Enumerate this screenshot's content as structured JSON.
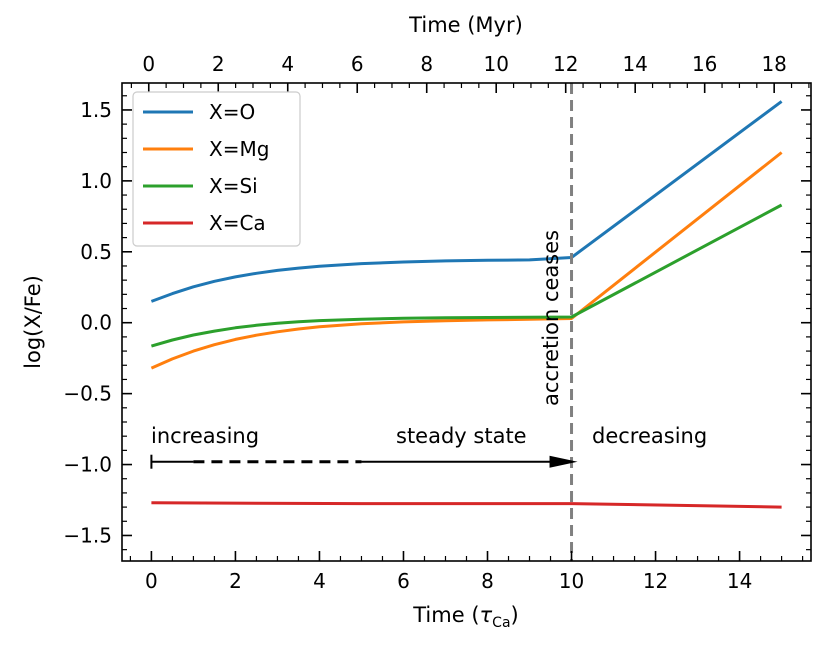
{
  "chart_data": {
    "type": "line",
    "xlabel_bottom": "Time (",
    "xlabel_bottom_symbol": "τ",
    "xlabel_bottom_sub": "Ca",
    "xlabel_bottom_close": ")",
    "xlabel_top": "Time (Myr)",
    "ylabel": "log(X/Fe)",
    "xlim": [
      -0.7,
      15.7
    ],
    "ylim": [
      -1.68,
      1.69
    ],
    "top_xlim": [
      -0.77,
      19.06
    ],
    "x_ticks": [
      0,
      2,
      4,
      6,
      8,
      10,
      12,
      14
    ],
    "x_tick_labels": [
      "0",
      "2",
      "4",
      "6",
      "8",
      "10",
      "12",
      "14"
    ],
    "top_ticks": [
      0,
      2,
      4,
      6,
      8,
      10,
      12,
      14,
      16,
      18
    ],
    "top_tick_labels": [
      "0",
      "2",
      "4",
      "6",
      "8",
      "10",
      "12",
      "14",
      "16",
      "18"
    ],
    "y_ticks": [
      1.5,
      1.0,
      0.5,
      0.0,
      -0.5,
      -1.0,
      -1.5
    ],
    "y_tick_labels": [
      "1.5",
      "1.0",
      "0.5",
      "0.0",
      "−0.5",
      "−1.0",
      "−1.5"
    ],
    "series": [
      {
        "name": "X=O",
        "color": "#1f77b4",
        "x": [
          0,
          0.5,
          1,
          1.5,
          2,
          2.5,
          3,
          3.5,
          4,
          5,
          6,
          7,
          8,
          9,
          10,
          15
        ],
        "y": [
          0.15,
          0.205,
          0.253,
          0.292,
          0.323,
          0.348,
          0.369,
          0.385,
          0.398,
          0.417,
          0.428,
          0.436,
          0.44,
          0.443,
          0.46,
          1.56
        ]
      },
      {
        "name": "X=Mg",
        "color": "#ff7f0e",
        "x": [
          0,
          0.5,
          1,
          1.5,
          2,
          2.5,
          3,
          3.5,
          4,
          5,
          6,
          7,
          8,
          9,
          10,
          15
        ],
        "y": [
          -0.32,
          -0.255,
          -0.2,
          -0.155,
          -0.118,
          -0.088,
          -0.064,
          -0.044,
          -0.029,
          -0.007,
          0.006,
          0.014,
          0.02,
          0.024,
          0.03,
          1.2
        ]
      },
      {
        "name": "X=Si",
        "color": "#2ca02c",
        "x": [
          0,
          0.5,
          1,
          1.5,
          2,
          2.5,
          3,
          3.5,
          4,
          5,
          6,
          7,
          8,
          9,
          10,
          15
        ],
        "y": [
          -0.165,
          -0.122,
          -0.087,
          -0.059,
          -0.036,
          -0.018,
          -0.004,
          0.007,
          0.015,
          0.025,
          0.031,
          0.035,
          0.037,
          0.038,
          0.04,
          0.83
        ]
      },
      {
        "name": "X=Ca",
        "color": "#d62728",
        "x": [
          0,
          5,
          10,
          15
        ],
        "y": [
          -1.27,
          -1.275,
          -1.275,
          -1.3
        ]
      }
    ],
    "vline": {
      "x": 10,
      "color": "#808080"
    },
    "annotations": {
      "accretion": "accretion ceases",
      "increasing": "increasing",
      "steady": "steady state",
      "decreasing": "decreasing"
    },
    "phase_arrow": {
      "y": -0.98,
      "x_start": 0,
      "x_end": 10
    }
  }
}
